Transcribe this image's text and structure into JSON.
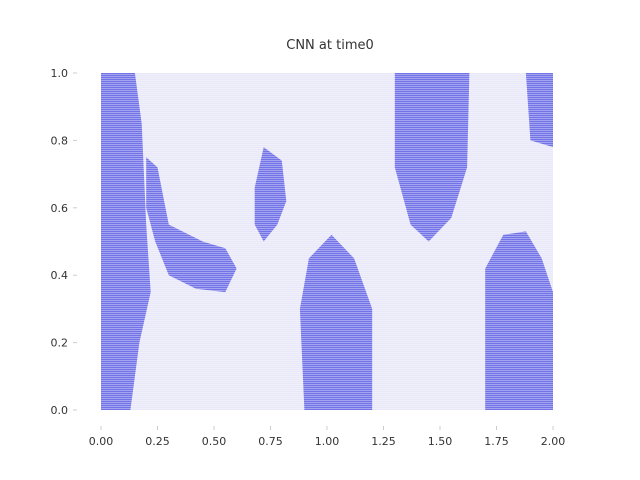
{
  "chart_data": {
    "type": "heatmap",
    "title": "CNN at time0",
    "xlabel": "",
    "ylabel": "",
    "xlim": [
      0.0,
      2.0
    ],
    "ylim": [
      0.0,
      1.0
    ],
    "x_ticks": [
      "0.00",
      "0.25",
      "0.50",
      "0.75",
      "1.00",
      "1.25",
      "1.50",
      "1.75",
      "2.00"
    ],
    "y_ticks": [
      "0.0",
      "0.2",
      "0.4",
      "0.6",
      "0.8",
      "1.0"
    ],
    "x_tick_values": [
      0,
      0.25,
      0.5,
      0.75,
      1.0,
      1.25,
      1.5,
      1.75,
      2.0
    ],
    "y_tick_values": [
      0,
      0.2,
      0.4,
      0.6,
      0.8,
      1.0
    ],
    "colormap": "white-to-blue",
    "colors": {
      "low": "#e8e8f8",
      "high": "#6666e6",
      "text": "#333333"
    },
    "grid": false,
    "regions": [
      {
        "name": "left-strip",
        "level": "high",
        "outline": [
          [
            0.0,
            0.0
          ],
          [
            0.0,
            1.0
          ],
          [
            0.15,
            1.0
          ],
          [
            0.18,
            0.85
          ],
          [
            0.2,
            0.55
          ],
          [
            0.22,
            0.35
          ],
          [
            0.17,
            0.2
          ],
          [
            0.13,
            0.0
          ]
        ]
      },
      {
        "name": "left-center-blob",
        "level": "high",
        "outline": [
          [
            0.2,
            0.75
          ],
          [
            0.25,
            0.72
          ],
          [
            0.3,
            0.55
          ],
          [
            0.45,
            0.5
          ],
          [
            0.55,
            0.48
          ],
          [
            0.6,
            0.42
          ],
          [
            0.55,
            0.35
          ],
          [
            0.42,
            0.36
          ],
          [
            0.3,
            0.4
          ],
          [
            0.24,
            0.5
          ],
          [
            0.2,
            0.6
          ]
        ]
      },
      {
        "name": "center-right-vertical",
        "level": "high",
        "outline": [
          [
            0.72,
            0.78
          ],
          [
            0.8,
            0.74
          ],
          [
            0.82,
            0.62
          ],
          [
            0.78,
            0.55
          ],
          [
            0.72,
            0.5
          ],
          [
            0.68,
            0.55
          ],
          [
            0.68,
            0.66
          ]
        ]
      },
      {
        "name": "bottom-center",
        "level": "high",
        "outline": [
          [
            0.9,
            0.0
          ],
          [
            0.88,
            0.3
          ],
          [
            0.92,
            0.45
          ],
          [
            1.02,
            0.52
          ],
          [
            1.12,
            0.45
          ],
          [
            1.2,
            0.3
          ],
          [
            1.2,
            0.0
          ]
        ]
      },
      {
        "name": "top-right-blob",
        "level": "high",
        "outline": [
          [
            1.3,
            1.0
          ],
          [
            1.3,
            0.72
          ],
          [
            1.37,
            0.55
          ],
          [
            1.45,
            0.5
          ],
          [
            1.55,
            0.57
          ],
          [
            1.62,
            0.72
          ],
          [
            1.63,
            1.0
          ]
        ]
      },
      {
        "name": "right-lower",
        "level": "high",
        "outline": [
          [
            1.7,
            0.0
          ],
          [
            1.7,
            0.42
          ],
          [
            1.78,
            0.52
          ],
          [
            1.88,
            0.53
          ],
          [
            1.95,
            0.45
          ],
          [
            2.0,
            0.35
          ],
          [
            2.0,
            0.0
          ]
        ]
      },
      {
        "name": "right-top-strip",
        "level": "high",
        "outline": [
          [
            1.88,
            1.0
          ],
          [
            1.9,
            0.8
          ],
          [
            2.0,
            0.78
          ],
          [
            2.0,
            1.0
          ]
        ]
      }
    ]
  }
}
